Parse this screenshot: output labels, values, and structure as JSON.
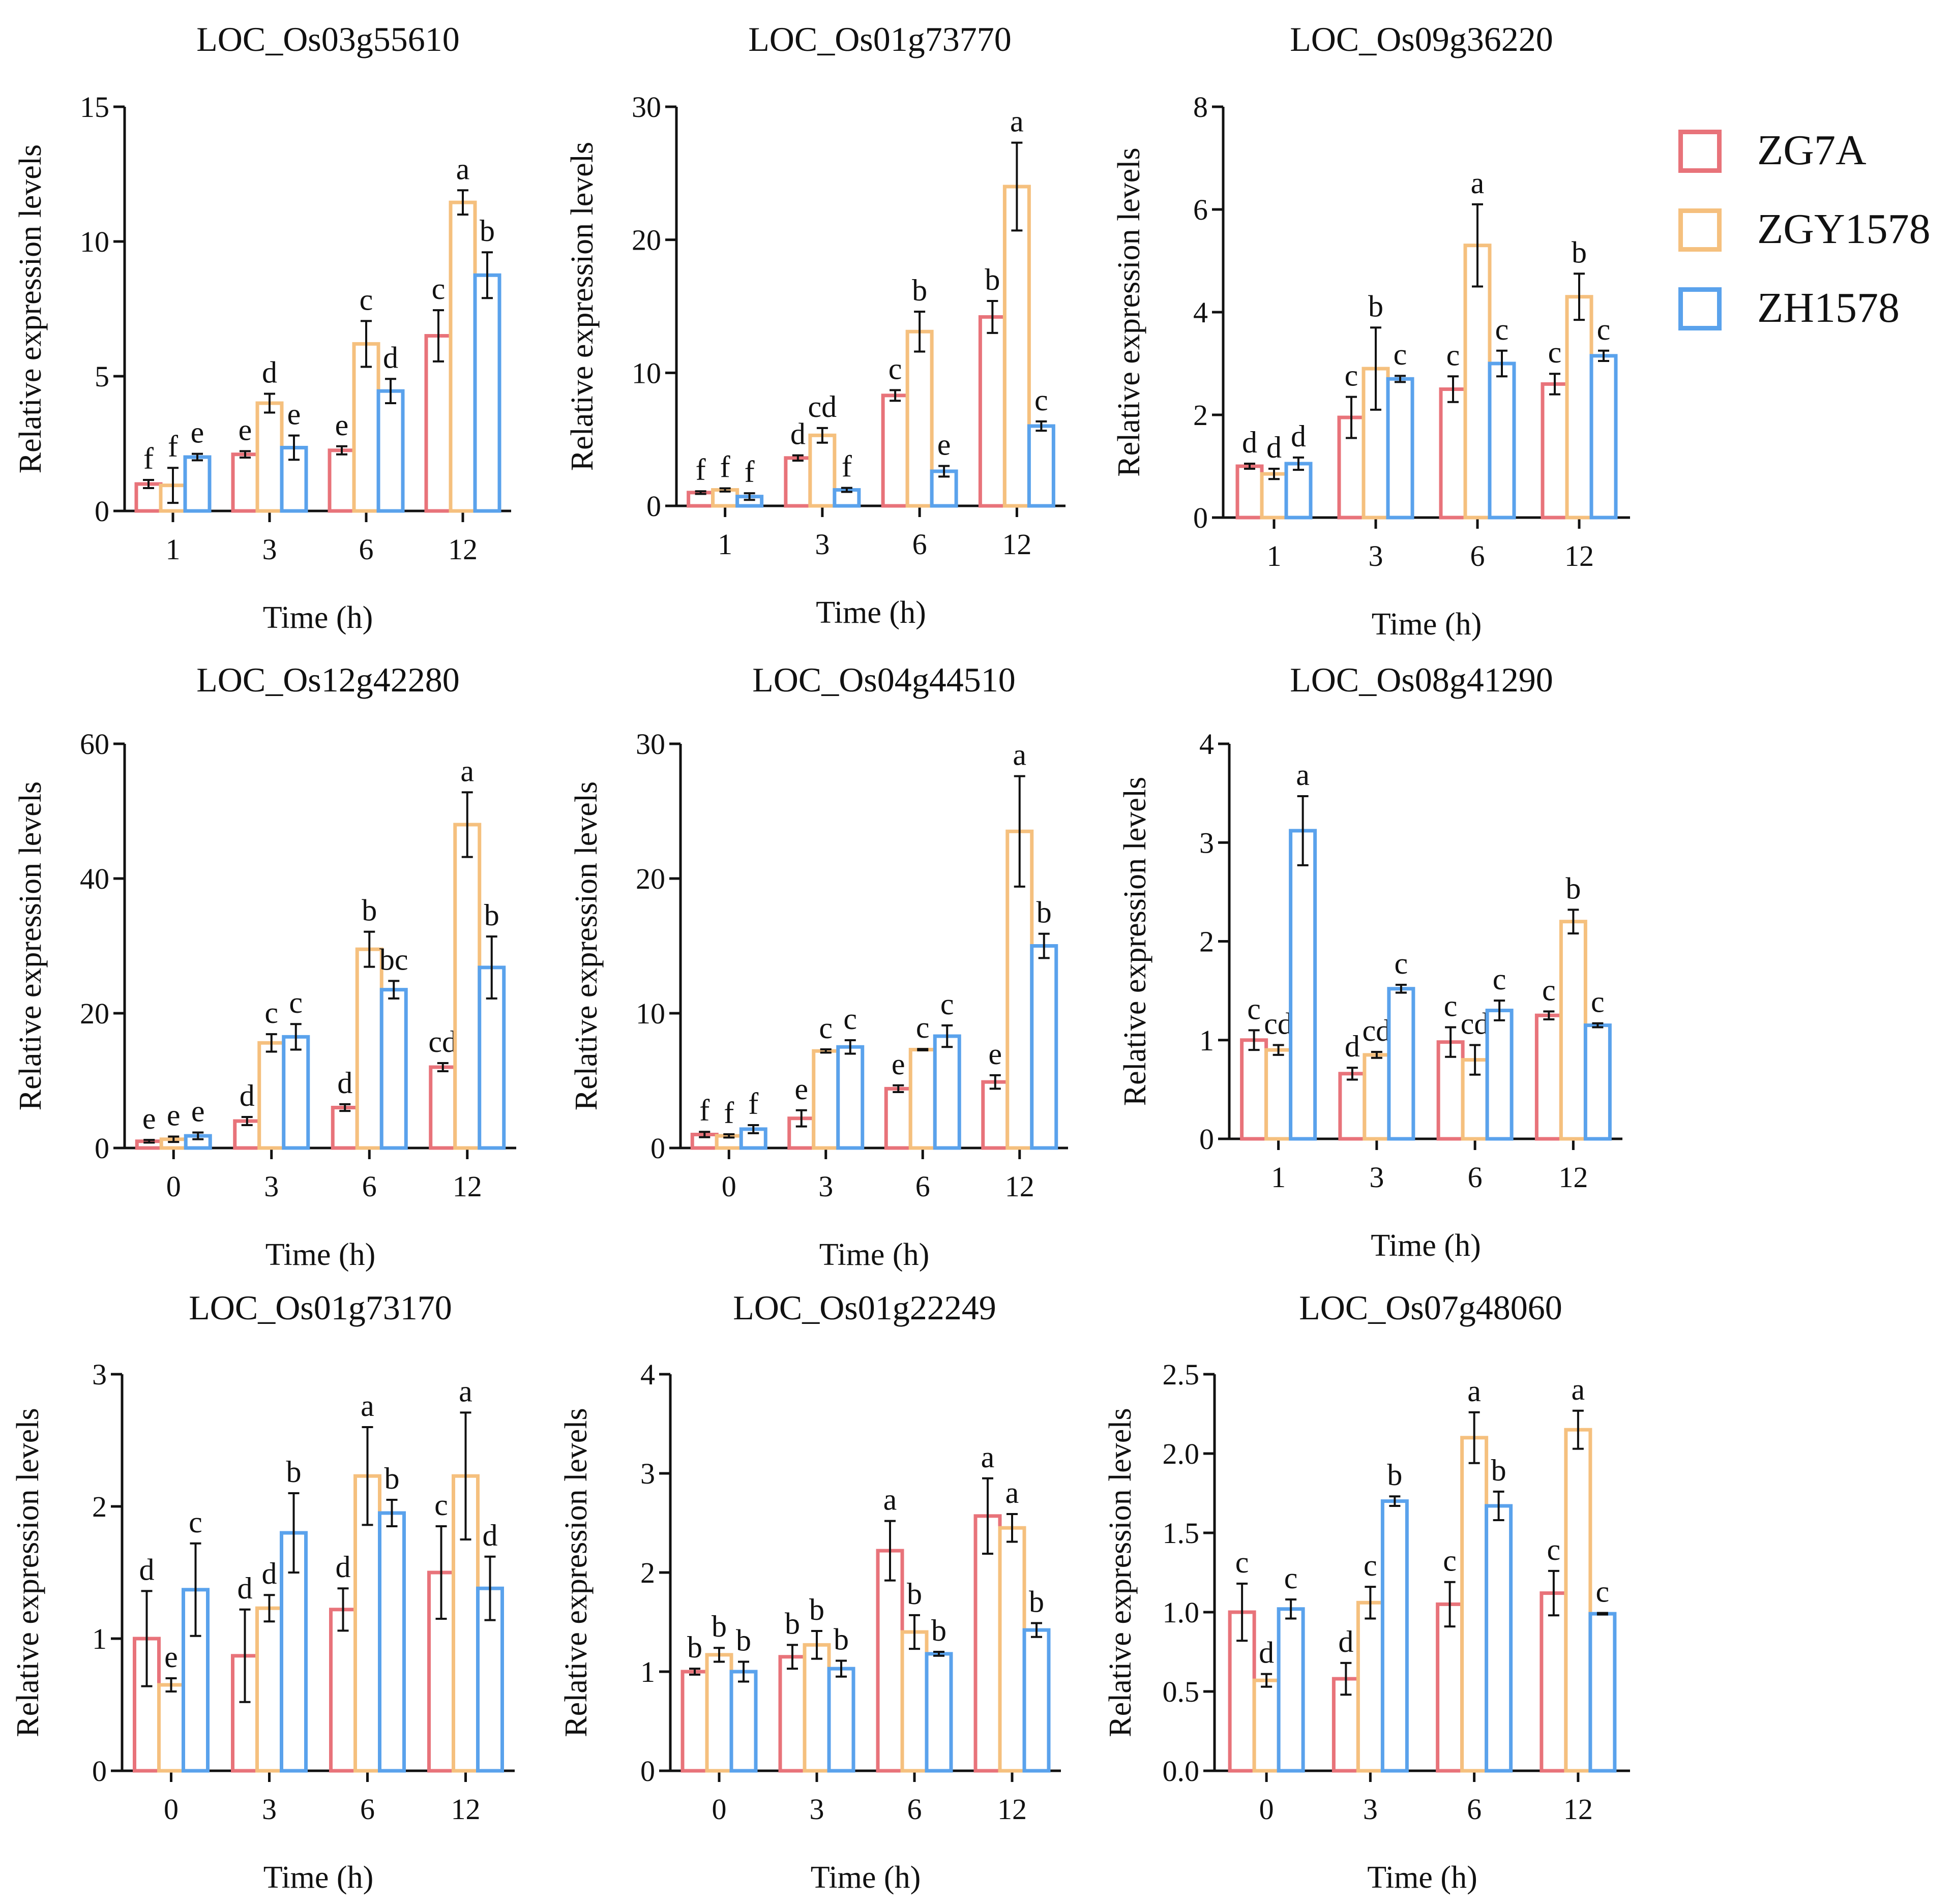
{
  "colors": {
    "ZG7A": "#e8737a",
    "ZGY1578": "#f5c07e",
    "ZH1578": "#5aa2ec",
    "axis": "#111111"
  },
  "legend": {
    "items": [
      {
        "label": "ZG7A",
        "color_key": "ZG7A"
      },
      {
        "label": "ZGY1578",
        "color_key": "ZGY1578"
      },
      {
        "label": "ZH1578",
        "color_key": "ZH1578"
      }
    ]
  },
  "chart_data": [
    {
      "type": "bar",
      "title": "LOC_Os03g55610",
      "xlabel": "Time (h)",
      "ylabel": "Relative expression levels",
      "categories": [
        "1",
        "3",
        "6",
        "12"
      ],
      "ylim": [
        0,
        15
      ],
      "yticks": [
        "0",
        "5",
        "10",
        "15"
      ],
      "series": [
        {
          "name": "ZG7A",
          "values": [
            1.0,
            2.1,
            2.25,
            6.5
          ],
          "errors": [
            0.15,
            0.12,
            0.15,
            0.95
          ],
          "letters": [
            "f",
            "e",
            "e",
            "c"
          ]
        },
        {
          "name": "ZGY1578",
          "values": [
            0.95,
            4.0,
            6.2,
            11.45
          ],
          "errors": [
            0.65,
            0.35,
            0.85,
            0.45
          ],
          "letters": [
            "f",
            "d",
            "c",
            "a"
          ]
        },
        {
          "name": "ZH1578",
          "values": [
            2.0,
            2.35,
            4.45,
            8.75
          ],
          "errors": [
            0.12,
            0.45,
            0.45,
            0.85
          ],
          "letters": [
            "e",
            "e",
            "d",
            "b"
          ]
        }
      ]
    },
    {
      "type": "bar",
      "title": "LOC_Os01g73770",
      "xlabel": "Time (h)",
      "ylabel": "Relative expression levels",
      "categories": [
        "1",
        "3",
        "6",
        "12"
      ],
      "ylim": [
        0,
        30
      ],
      "yticks": [
        "0",
        "10",
        "20",
        "30"
      ],
      "series": [
        {
          "name": "ZG7A",
          "values": [
            1.0,
            3.6,
            8.3,
            14.2
          ],
          "errors": [
            0.1,
            0.2,
            0.4,
            1.2
          ],
          "letters": [
            "f",
            "d",
            "c",
            "b"
          ]
        },
        {
          "name": "ZGY1578",
          "values": [
            1.2,
            5.3,
            13.1,
            24.0
          ],
          "errors": [
            0.12,
            0.55,
            1.5,
            3.3
          ],
          "letters": [
            "f",
            "cd",
            "b",
            "a"
          ]
        },
        {
          "name": "ZH1578",
          "values": [
            0.7,
            1.2,
            2.6,
            6.0
          ],
          "errors": [
            0.25,
            0.15,
            0.4,
            0.35
          ],
          "letters": [
            "f",
            "f",
            "e",
            "c"
          ]
        }
      ]
    },
    {
      "type": "bar",
      "title": "LOC_Os09g36220",
      "xlabel": "Time (h)",
      "ylabel": "Relative expression levels",
      "categories": [
        "1",
        "3",
        "6",
        "12"
      ],
      "ylim": [
        0,
        8
      ],
      "yticks": [
        "0",
        "2",
        "4",
        "6",
        "8"
      ],
      "series": [
        {
          "name": "ZG7A",
          "values": [
            1.0,
            1.95,
            2.5,
            2.6
          ],
          "errors": [
            0.05,
            0.4,
            0.25,
            0.2
          ],
          "letters": [
            "d",
            "c",
            "c",
            "c"
          ]
        },
        {
          "name": "ZGY1578",
          "values": [
            0.85,
            2.9,
            5.3,
            4.3
          ],
          "errors": [
            0.1,
            0.8,
            0.8,
            0.45
          ],
          "letters": [
            "d",
            "b",
            "a",
            "b"
          ]
        },
        {
          "name": "ZH1578",
          "values": [
            1.05,
            2.7,
            3.0,
            3.15
          ],
          "errors": [
            0.12,
            0.06,
            0.25,
            0.1
          ],
          "letters": [
            "d",
            "c",
            "c",
            "c"
          ]
        }
      ]
    },
    {
      "type": "bar",
      "title": "LOC_Os12g42280",
      "xlabel": "Time (h)",
      "ylabel": "Relative expression levels",
      "categories": [
        "0",
        "3",
        "6",
        "12"
      ],
      "ylim": [
        0,
        60
      ],
      "yticks": [
        "0",
        "20",
        "40",
        "60"
      ],
      "series": [
        {
          "name": "ZG7A",
          "values": [
            1.0,
            4.0,
            6.0,
            12.0
          ],
          "errors": [
            0.2,
            0.6,
            0.5,
            0.6
          ],
          "letters": [
            "e",
            "d",
            "d",
            "cd"
          ]
        },
        {
          "name": "ZGY1578",
          "values": [
            1.3,
            15.6,
            29.5,
            48.0
          ],
          "errors": [
            0.4,
            1.3,
            2.6,
            4.8
          ],
          "letters": [
            "e",
            "c",
            "b",
            "a"
          ]
        },
        {
          "name": "ZH1578",
          "values": [
            1.8,
            16.5,
            23.5,
            26.8
          ],
          "errors": [
            0.5,
            1.9,
            1.3,
            4.6
          ],
          "letters": [
            "e",
            "c",
            "bc",
            "b"
          ]
        }
      ]
    },
    {
      "type": "bar",
      "title": "LOC_Os04g44510",
      "xlabel": "Time (h)",
      "ylabel": "Relative expression levels",
      "categories": [
        "0",
        "3",
        "6",
        "12"
      ],
      "ylim": [
        0,
        30
      ],
      "yticks": [
        "0",
        "10",
        "20",
        "30"
      ],
      "series": [
        {
          "name": "ZG7A",
          "values": [
            1.0,
            2.2,
            4.4,
            4.9
          ],
          "errors": [
            0.2,
            0.6,
            0.25,
            0.5
          ],
          "letters": [
            "f",
            "e",
            "e",
            "e"
          ]
        },
        {
          "name": "ZGY1578",
          "values": [
            0.9,
            7.2,
            7.3,
            23.5
          ],
          "errors": [
            0.12,
            0.12,
            0.05,
            4.1
          ],
          "letters": [
            "f",
            "c",
            "c",
            "a"
          ]
        },
        {
          "name": "ZH1578",
          "values": [
            1.4,
            7.5,
            8.3,
            15.0
          ],
          "errors": [
            0.3,
            0.5,
            0.8,
            0.9
          ],
          "letters": [
            "f",
            "c",
            "c",
            "b"
          ]
        }
      ]
    },
    {
      "type": "bar",
      "title": "LOC_Os08g41290",
      "xlabel": "Time (h)",
      "ylabel": "Relative expression levels",
      "categories": [
        "1",
        "3",
        "6",
        "12"
      ],
      "ylim": [
        0,
        4
      ],
      "yticks": [
        "0",
        "1",
        "2",
        "3",
        "4"
      ],
      "series": [
        {
          "name": "ZG7A",
          "values": [
            1.0,
            0.66,
            0.98,
            1.25
          ],
          "errors": [
            0.1,
            0.06,
            0.15,
            0.04
          ],
          "letters": [
            "c",
            "d",
            "c",
            "c"
          ]
        },
        {
          "name": "ZGY1578",
          "values": [
            0.9,
            0.85,
            0.8,
            2.2
          ],
          "errors": [
            0.05,
            0.03,
            0.15,
            0.12
          ],
          "letters": [
            "cd",
            "cd",
            "cd",
            "b"
          ]
        },
        {
          "name": "ZH1578",
          "values": [
            3.12,
            1.52,
            1.3,
            1.15
          ],
          "errors": [
            0.35,
            0.04,
            0.1,
            0.02
          ],
          "letters": [
            "a",
            "c",
            "c",
            "c"
          ]
        }
      ]
    },
    {
      "type": "bar",
      "title": "LOC_Os01g73170",
      "xlabel": "Time (h)",
      "ylabel": "Relative expression levels",
      "categories": [
        "0",
        "3",
        "6",
        "12"
      ],
      "ylim": [
        0,
        3
      ],
      "yticks": [
        "0",
        "1",
        "2",
        "3"
      ],
      "series": [
        {
          "name": "ZG7A",
          "values": [
            1.0,
            0.87,
            1.22,
            1.5
          ],
          "errors": [
            0.36,
            0.35,
            0.16,
            0.35
          ],
          "letters": [
            "d",
            "d",
            "d",
            "c"
          ]
        },
        {
          "name": "ZGY1578",
          "values": [
            0.65,
            1.23,
            2.23,
            2.23
          ],
          "errors": [
            0.05,
            0.1,
            0.37,
            0.48
          ],
          "letters": [
            "e",
            "d",
            "a",
            "a"
          ]
        },
        {
          "name": "ZH1578",
          "values": [
            1.37,
            1.8,
            1.95,
            1.38
          ],
          "errors": [
            0.35,
            0.3,
            0.1,
            0.24
          ],
          "letters": [
            "c",
            "b",
            "b",
            "d"
          ]
        }
      ]
    },
    {
      "type": "bar",
      "title": "LOC_Os01g22249",
      "xlabel": "Time (h)",
      "ylabel": "Relative expression levels",
      "categories": [
        "0",
        "3",
        "6",
        "12"
      ],
      "ylim": [
        0,
        4
      ],
      "yticks": [
        "0",
        "1",
        "2",
        "3",
        "4"
      ],
      "series": [
        {
          "name": "ZG7A",
          "values": [
            1.0,
            1.15,
            2.22,
            2.57
          ],
          "errors": [
            0.03,
            0.12,
            0.3,
            0.38
          ],
          "letters": [
            "b",
            "b",
            "a",
            "a"
          ]
        },
        {
          "name": "ZGY1578",
          "values": [
            1.17,
            1.27,
            1.4,
            2.45
          ],
          "errors": [
            0.07,
            0.14,
            0.17,
            0.14
          ],
          "letters": [
            "b",
            "b",
            "b",
            "a"
          ]
        },
        {
          "name": "ZH1578",
          "values": [
            1.0,
            1.03,
            1.18,
            1.42
          ],
          "errors": [
            0.1,
            0.08,
            0.02,
            0.07
          ],
          "letters": [
            "b",
            "b",
            "b",
            "b"
          ]
        }
      ]
    },
    {
      "type": "bar",
      "title": "LOC_Os07g48060",
      "xlabel": "Time (h)",
      "ylabel": "Relative expression levels",
      "categories": [
        "0",
        "3",
        "6",
        "12"
      ],
      "ylim": [
        0,
        2.5
      ],
      "yticks": [
        "0.0",
        "0.5",
        "1.0",
        "1.5",
        "2.0",
        "2.5"
      ],
      "series": [
        {
          "name": "ZG7A",
          "values": [
            1.0,
            0.58,
            1.05,
            1.12
          ],
          "errors": [
            0.18,
            0.1,
            0.14,
            0.14
          ],
          "letters": [
            "c",
            "d",
            "c",
            "c"
          ]
        },
        {
          "name": "ZGY1578",
          "values": [
            0.57,
            1.06,
            2.1,
            2.15
          ],
          "errors": [
            0.04,
            0.1,
            0.16,
            0.12
          ],
          "letters": [
            "d",
            "c",
            "a",
            "a"
          ]
        },
        {
          "name": "ZH1578",
          "values": [
            1.02,
            1.7,
            1.67,
            0.99
          ],
          "errors": [
            0.06,
            0.03,
            0.09,
            0.005
          ],
          "letters": [
            "c",
            "b",
            "b",
            "c"
          ]
        }
      ]
    }
  ]
}
